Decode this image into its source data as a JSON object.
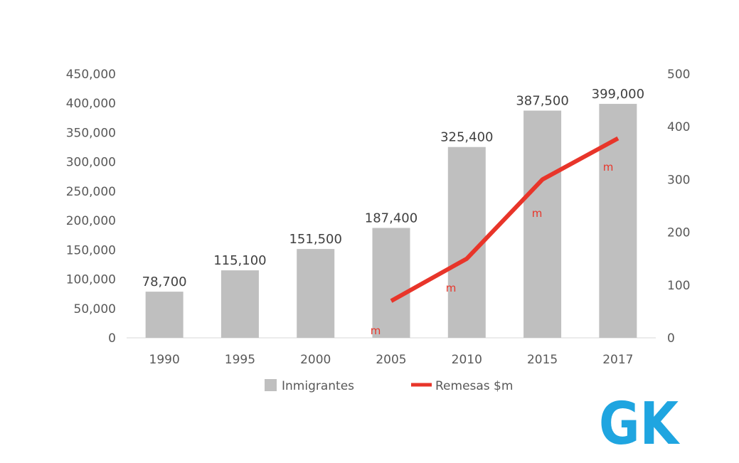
{
  "chart_data": {
    "type": "bar+line",
    "categories": [
      "1990",
      "1995",
      "2000",
      "2005",
      "2010",
      "2015",
      "2017"
    ],
    "series": [
      {
        "name": "Inmigrantes",
        "type": "bar",
        "axis": "left",
        "values": [
          78700,
          115100,
          151500,
          187400,
          325400,
          387500,
          399000
        ],
        "labels": [
          "78,700",
          "115,100",
          "151,500",
          "187,400",
          "325,400",
          "387,500",
          "399,000"
        ],
        "color": "#bfbfbf"
      },
      {
        "name": "Remesas $m",
        "type": "line",
        "axis": "right",
        "values": [
          null,
          null,
          null,
          70,
          150,
          300,
          378
        ],
        "marker_text": "m",
        "color": "#e8352a"
      }
    ],
    "y_left": {
      "ylim": [
        0,
        450000
      ],
      "ticks": [
        0,
        50000,
        100000,
        150000,
        200000,
        250000,
        300000,
        350000,
        400000,
        450000
      ],
      "tick_labels": [
        "0",
        "50,000",
        "100,000",
        "150,000",
        "200,000",
        "250,000",
        "300,000",
        "350,000",
        "400,000",
        "450,000"
      ]
    },
    "y_right": {
      "ylim": [
        0,
        500
      ],
      "ticks": [
        0,
        100,
        200,
        300,
        400,
        500
      ],
      "tick_labels": [
        "0",
        "100",
        "200",
        "300",
        "400",
        "500"
      ]
    },
    "grid": false,
    "legend_position": "bottom",
    "title": "",
    "xlabel": "",
    "ylabel": ""
  },
  "logo": {
    "text": "GK",
    "color": "#1fa5e0"
  }
}
